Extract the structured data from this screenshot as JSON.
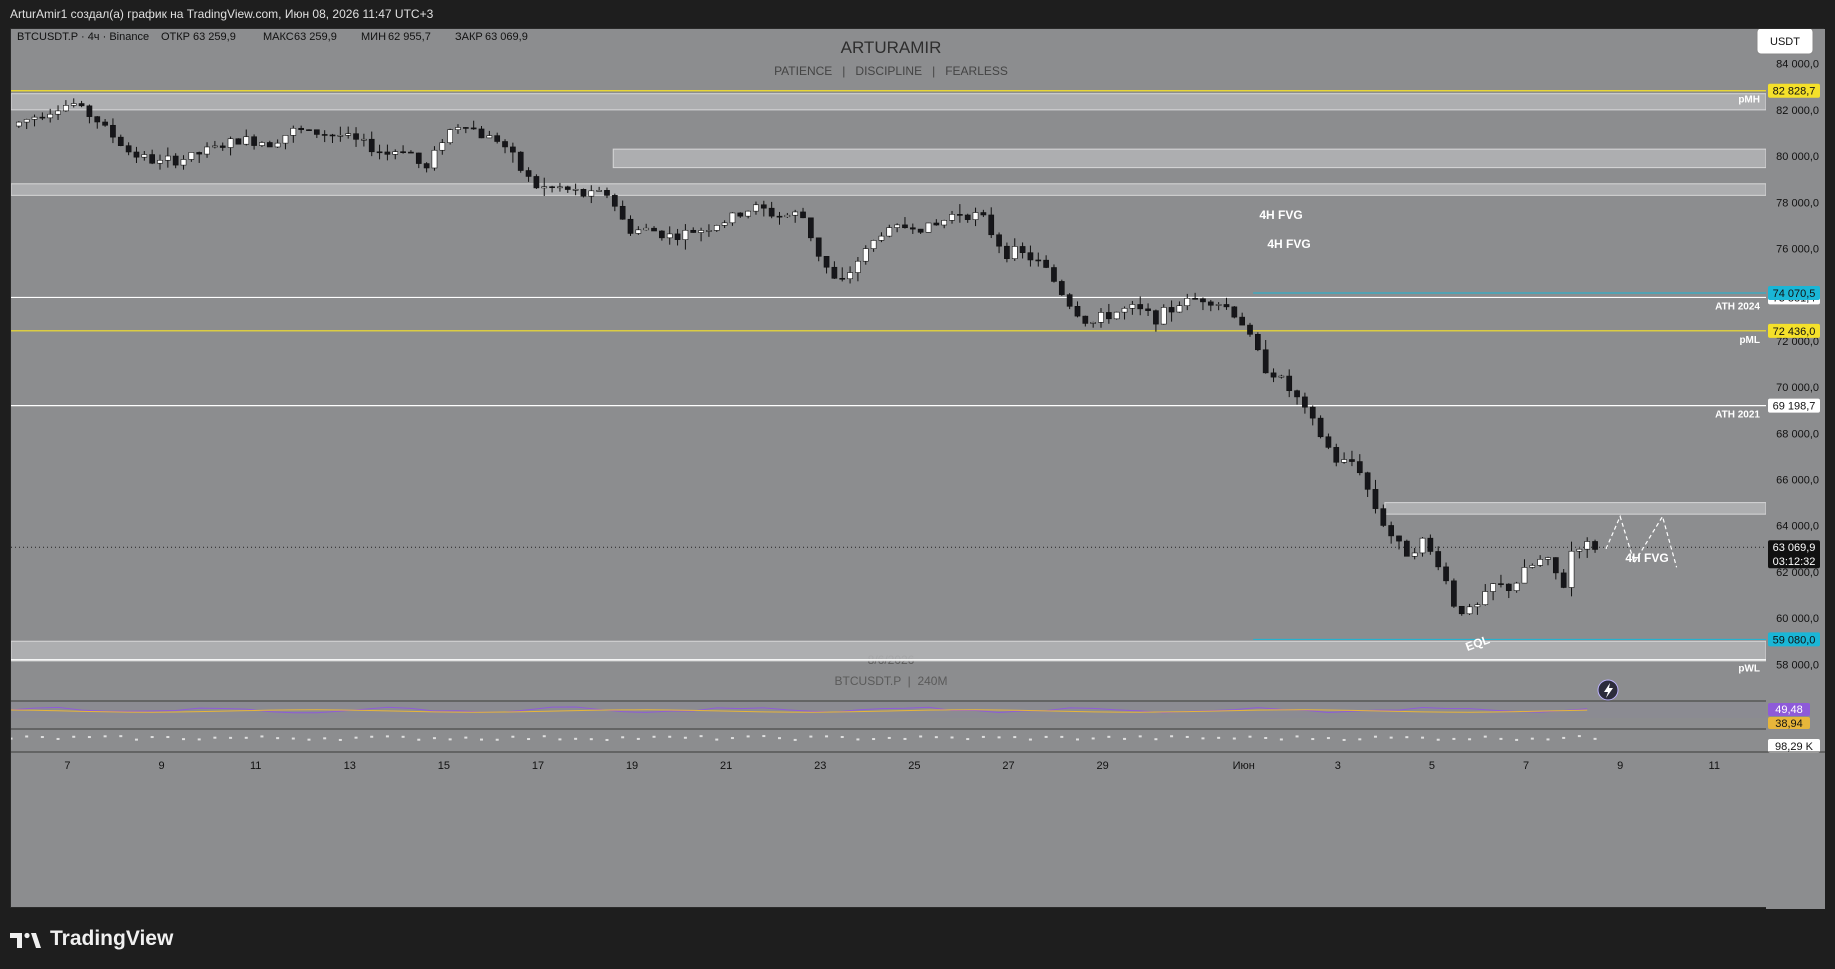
{
  "header": {
    "text": "ArturAmir1 создал(а) график на TradingView.com, Июн 08, 2026 11:47 UTC+3"
  },
  "legend": {
    "symbol": "BTCUSDT.P · 4ч · Binance",
    "open_label": "ОТКР",
    "open": "63 259,9",
    "high_label": "МАКС",
    "high": "63 259,9",
    "low_label": "МИН",
    "low": "62 955,7",
    "close_label": "ЗАКР",
    "close": "63 069,9"
  },
  "watermark": {
    "title": "ARTURAMIR",
    "subtitle": "PATIENCE   |   DISCIPLINE   |   FEARLESS",
    "date": "8/6/2026",
    "symbol": "BTCUSDT.P  |  240M"
  },
  "currency_button": "USDT",
  "brand": "TradingView",
  "colors": {
    "background": "#8c8d8f",
    "bull": "#ffffff",
    "bear": "#16161a",
    "yellow_line": "#f5e12a",
    "cyan_line": "#1ab6d6",
    "fvg_fill": "#b3b4b6",
    "rsi": "#8e5bd9",
    "rsi_ma": "#e7b63a"
  },
  "chart_data": {
    "type": "candlestick",
    "symbol": "BTCUSDT.P",
    "timeframe": "4h",
    "ylim": [
      56500,
      85500
    ],
    "y_ticks": [
      "84 000,0",
      "82 000,0",
      "80 000,0",
      "78 000,0",
      "76 000,0",
      "74 000,0",
      "72 000,0",
      "70 000,0",
      "68 000,0",
      "66 000,0",
      "64 000,0",
      "62 000,0",
      "60 000,0",
      "58 000,0"
    ],
    "y_tick_values": [
      84000,
      82000,
      80000,
      78000,
      76000,
      74000,
      72000,
      70000,
      68000,
      66000,
      64000,
      62000,
      60000,
      58000
    ],
    "x_ticks": [
      "7",
      "9",
      "11",
      "13",
      "15",
      "17",
      "19",
      "21",
      "23",
      "25",
      "27",
      "29",
      "Июн",
      "3",
      "5",
      "7",
      "9",
      "11"
    ],
    "x_tick_days": [
      7,
      9,
      11,
      13,
      15,
      17,
      19,
      21,
      23,
      25,
      27,
      29,
      32,
      34,
      36,
      38,
      40,
      42
    ],
    "x_range_days": [
      5.8,
      43.1
    ],
    "price_path": [
      [
        5.8,
        81300
      ],
      [
        6.5,
        81900
      ],
      [
        7.1,
        82300
      ],
      [
        7.6,
        81600
      ],
      [
        8.3,
        80200
      ],
      [
        8.9,
        79700
      ],
      [
        9.5,
        79900
      ],
      [
        10.2,
        80400
      ],
      [
        10.7,
        80700
      ],
      [
        11.3,
        80600
      ],
      [
        11.8,
        81100
      ],
      [
        12.3,
        81000
      ],
      [
        12.8,
        80900
      ],
      [
        13.3,
        80500
      ],
      [
        13.8,
        80100
      ],
      [
        14.2,
        80400
      ],
      [
        14.6,
        79300
      ],
      [
        15.0,
        80900
      ],
      [
        15.4,
        81500
      ],
      [
        15.8,
        80900
      ],
      [
        16.2,
        80700
      ],
      [
        16.6,
        79500
      ],
      [
        17.0,
        78600
      ],
      [
        17.5,
        78600
      ],
      [
        18.0,
        78300
      ],
      [
        18.5,
        78400
      ],
      [
        18.9,
        76800
      ],
      [
        19.4,
        76800
      ],
      [
        19.9,
        76500
      ],
      [
        20.4,
        76800
      ],
      [
        21.0,
        77200
      ],
      [
        21.6,
        77800
      ],
      [
        22.1,
        77400
      ],
      [
        22.6,
        77500
      ],
      [
        23.0,
        75600
      ],
      [
        23.4,
        74300
      ],
      [
        23.8,
        75500
      ],
      [
        24.3,
        76700
      ],
      [
        24.9,
        77000
      ],
      [
        25.4,
        76900
      ],
      [
        25.9,
        77600
      ],
      [
        26.4,
        77400
      ],
      [
        26.9,
        75900
      ],
      [
        27.4,
        75700
      ],
      [
        27.8,
        75100
      ],
      [
        28.3,
        73600
      ],
      [
        28.7,
        72700
      ],
      [
        29.2,
        73200
      ],
      [
        29.6,
        73400
      ],
      [
        30.2,
        73000
      ],
      [
        30.7,
        73700
      ],
      [
        31.2,
        73900
      ],
      [
        31.7,
        73400
      ],
      [
        32.0,
        72700
      ],
      [
        32.4,
        71000
      ],
      [
        32.8,
        70300
      ],
      [
        33.2,
        69300
      ],
      [
        33.6,
        68000
      ],
      [
        34.0,
        66700
      ],
      [
        34.4,
        66800
      ],
      [
        34.7,
        65200
      ],
      [
        35.0,
        64000
      ],
      [
        35.4,
        62800
      ],
      [
        35.8,
        63300
      ],
      [
        36.2,
        62200
      ],
      [
        36.5,
        60400
      ],
      [
        36.9,
        60300
      ],
      [
        37.3,
        61400
      ],
      [
        37.7,
        61300
      ],
      [
        38.0,
        62100
      ],
      [
        38.4,
        62600
      ],
      [
        38.8,
        61400
      ],
      [
        39.0,
        63200
      ],
      [
        39.4,
        63100
      ],
      [
        39.6,
        63069.9
      ]
    ],
    "projection": [
      [
        39.7,
        63000
      ],
      [
        40.0,
        64400
      ],
      [
        40.3,
        62400
      ],
      [
        40.9,
        64400
      ],
      [
        41.2,
        62200
      ]
    ],
    "horizontal_lines": [
      {
        "label": "pMH",
        "price": 82828.7,
        "price_label": "82 828,7",
        "color": "yellow"
      },
      {
        "label": "ATH 2024",
        "price": 73881.4,
        "price_label": "73 881,4",
        "color": "white"
      },
      {
        "label": "pML",
        "price": 72436.0,
        "price_label": "72 436,0",
        "color": "yellow"
      },
      {
        "label": "ATH 2021",
        "price": 69198.7,
        "price_label": "69 198,7",
        "color": "white"
      },
      {
        "label": "pWL",
        "price": 58200,
        "price_label": "",
        "color": "white"
      }
    ],
    "price_markers": [
      {
        "price": 74070.5,
        "text": "74 070,5",
        "color": "cyan"
      },
      {
        "price": 59080.0,
        "text": "59 080,0",
        "color": "cyan"
      },
      {
        "price": 63069.9,
        "text": "63 069,9",
        "countdown": "03:12:32",
        "color": "black"
      }
    ],
    "zones": [
      {
        "label": "",
        "top": 82700,
        "bottom": 82000
      },
      {
        "label": "4H FVG",
        "top": 80300,
        "bottom": 79500
      },
      {
        "label": "4H FVG",
        "top": 78800,
        "bottom": 78300
      },
      {
        "label": "4H FVG",
        "top": 65000,
        "bottom": 64500
      },
      {
        "label": "",
        "top": 59000,
        "bottom": 58150
      }
    ],
    "annotations": [
      {
        "text": "EQL",
        "day": 37.0,
        "price": 59100
      }
    ],
    "rsi": {
      "value": "49,48",
      "ma_value": "38,94"
    },
    "volume": {
      "value": "98,29 K"
    }
  }
}
